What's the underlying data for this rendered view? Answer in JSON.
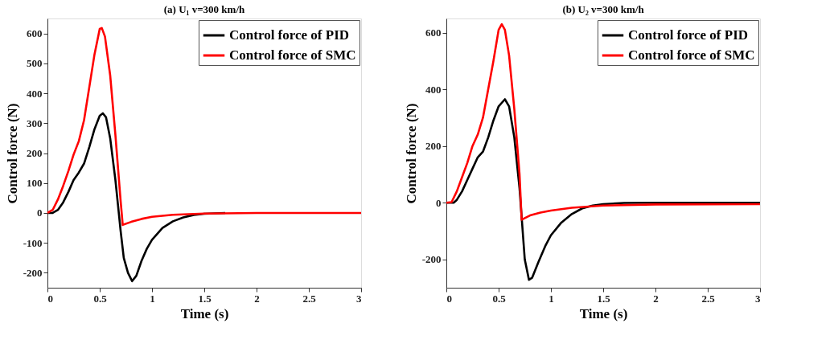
{
  "chart_data": [
    {
      "type": "line",
      "title": "(a) U₁  v=300 km/h",
      "xlabel": "Time (s)",
      "ylabel": "Control force (N)",
      "xlim": [
        0,
        3
      ],
      "xticks": [
        0,
        0.5,
        1,
        1.5,
        2,
        2.5,
        3
      ],
      "ylim": [
        -250,
        650
      ],
      "yticks": [
        -200,
        -100,
        0,
        100,
        200,
        300,
        400,
        500,
        600
      ],
      "grid": false,
      "legend": "top right",
      "line_style": "solid",
      "marker": "none",
      "series": [
        {
          "name": "Control force of PID",
          "color": "#000000",
          "x": [
            0,
            0.05,
            0.1,
            0.15,
            0.2,
            0.25,
            0.3,
            0.35,
            0.4,
            0.45,
            0.5,
            0.53,
            0.56,
            0.6,
            0.65,
            0.7,
            0.73,
            0.77,
            0.81,
            0.85,
            0.9,
            0.95,
            1.0,
            1.1,
            1.2,
            1.3,
            1.4,
            1.5,
            1.7
          ],
          "values": [
            0,
            0,
            10,
            35,
            70,
            110,
            135,
            165,
            220,
            280,
            325,
            333,
            320,
            250,
            110,
            -60,
            -150,
            -200,
            -228,
            -210,
            -160,
            -120,
            -90,
            -50,
            -28,
            -15,
            -7,
            -3,
            0
          ]
        },
        {
          "name": "Control force of SMC",
          "color": "#ff0000",
          "x": [
            0,
            0.05,
            0.1,
            0.15,
            0.2,
            0.25,
            0.3,
            0.35,
            0.4,
            0.45,
            0.5,
            0.52,
            0.55,
            0.6,
            0.65,
            0.7,
            0.72,
            0.8,
            0.9,
            1.0,
            1.2,
            1.5,
            2,
            3
          ],
          "values": [
            0,
            10,
            45,
            90,
            140,
            195,
            240,
            310,
            420,
            530,
            615,
            618,
            590,
            460,
            260,
            40,
            -40,
            -30,
            -20,
            -13,
            -6,
            -2,
            0,
            0
          ]
        }
      ]
    },
    {
      "type": "line",
      "title": "(b) U₂  v=300 km/h",
      "xlabel": "Time (s)",
      "ylabel": "Control force (N)",
      "xlim": [
        0,
        3
      ],
      "xticks": [
        0,
        0.5,
        1,
        1.5,
        2,
        2.5,
        3
      ],
      "ylim": [
        -300,
        650
      ],
      "yticks": [
        -200,
        0,
        200,
        400,
        600
      ],
      "grid": false,
      "legend": "top right",
      "line_style": "solid",
      "marker": "none",
      "series": [
        {
          "name": "Control force of PID",
          "color": "#000000",
          "x": [
            0,
            0.07,
            0.1,
            0.15,
            0.2,
            0.25,
            0.3,
            0.35,
            0.4,
            0.45,
            0.5,
            0.56,
            0.6,
            0.65,
            0.7,
            0.72,
            0.75,
            0.79,
            0.82,
            0.88,
            0.95,
            1.0,
            1.1,
            1.2,
            1.3,
            1.4,
            1.5,
            1.7,
            2,
            3
          ],
          "values": [
            0,
            0,
            10,
            40,
            80,
            120,
            160,
            180,
            230,
            290,
            340,
            365,
            340,
            230,
            50,
            -50,
            -200,
            -272,
            -265,
            -210,
            -150,
            -115,
            -70,
            -40,
            -20,
            -10,
            -5,
            -1,
            0,
            0
          ]
        },
        {
          "name": "Control force of SMC",
          "color": "#ff0000",
          "x": [
            0,
            0.05,
            0.1,
            0.15,
            0.2,
            0.25,
            0.3,
            0.35,
            0.4,
            0.45,
            0.5,
            0.53,
            0.56,
            0.6,
            0.65,
            0.7,
            0.72,
            0.8,
            0.9,
            1.0,
            1.2,
            1.5,
            2,
            3
          ],
          "values": [
            0,
            2,
            40,
            90,
            140,
            200,
            240,
            300,
            400,
            500,
            610,
            630,
            610,
            520,
            330,
            100,
            -60,
            -45,
            -35,
            -28,
            -18,
            -10,
            -6,
            -5
          ]
        }
      ]
    }
  ]
}
